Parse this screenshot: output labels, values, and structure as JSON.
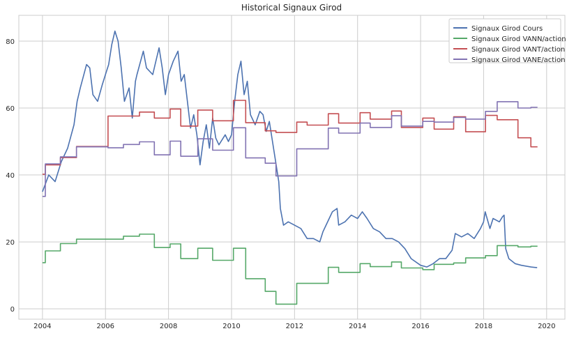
{
  "chart_data": {
    "type": "line",
    "title": "Historical Signaux Girod",
    "xlabel": "",
    "ylabel": "",
    "xlim": [
      2003.25,
      2020.58
    ],
    "ylim": [
      -3.1,
      87.7
    ],
    "xticks": [
      2004,
      2006,
      2008,
      2010,
      2012,
      2014,
      2016,
      2018,
      2020
    ],
    "yticks": [
      0,
      20,
      40,
      60,
      80
    ],
    "grid": true,
    "legend_position": "top-right",
    "series": [
      {
        "name": "Signaux Girod Cours",
        "color": "#4c72b0",
        "step": false,
        "x": [
          2004.0,
          2004.2,
          2004.4,
          2004.6,
          2004.8,
          2005.0,
          2005.1,
          2005.2,
          2005.4,
          2005.5,
          2005.6,
          2005.75,
          2005.9,
          2006.0,
          2006.1,
          2006.2,
          2006.3,
          2006.4,
          2006.5,
          2006.6,
          2006.75,
          2006.85,
          2006.95,
          2007.0,
          2007.2,
          2007.3,
          2007.5,
          2007.6,
          2007.7,
          2007.8,
          2007.9,
          2008.0,
          2008.15,
          2008.3,
          2008.4,
          2008.5,
          2008.6,
          2008.7,
          2008.8,
          2008.9,
          2009.0,
          2009.1,
          2009.2,
          2009.3,
          2009.4,
          2009.5,
          2009.6,
          2009.8,
          2009.9,
          2010.0,
          2010.1,
          2010.2,
          2010.3,
          2010.4,
          2010.5,
          2010.6,
          2010.75,
          2010.9,
          2011.0,
          2011.1,
          2011.2,
          2011.3,
          2011.4,
          2011.5,
          2011.55,
          2011.65,
          2011.8,
          2012.0,
          2012.2,
          2012.4,
          2012.6,
          2012.8,
          2012.9,
          2013.0,
          2013.2,
          2013.35,
          2013.4,
          2013.6,
          2013.8,
          2014.0,
          2014.15,
          2014.3,
          2014.5,
          2014.7,
          2014.9,
          2015.1,
          2015.3,
          2015.5,
          2015.7,
          2016.0,
          2016.2,
          2016.4,
          2016.6,
          2016.8,
          2017.0,
          2017.1,
          2017.3,
          2017.5,
          2017.7,
          2017.9,
          2018.0,
          2018.05,
          2018.2,
          2018.3,
          2018.5,
          2018.6,
          2018.65,
          2018.7,
          2018.8,
          2019.0,
          2019.2,
          2019.5,
          2019.7
        ],
        "y": [
          35,
          40,
          38,
          44,
          48,
          55,
          62,
          66,
          73,
          72,
          64,
          62,
          67,
          70,
          73,
          79,
          83,
          80,
          72,
          62,
          66,
          57,
          68,
          70,
          77,
          72,
          70,
          74,
          78,
          72,
          64,
          70,
          74,
          77,
          68,
          70,
          62,
          54,
          58,
          52,
          43,
          50,
          55,
          48,
          57,
          51,
          49,
          52,
          50,
          52,
          62,
          70,
          74,
          64,
          68,
          58,
          55,
          59,
          58,
          53,
          56,
          50,
          44,
          38,
          30,
          25,
          26,
          25,
          24,
          21,
          21,
          20,
          23,
          25,
          29,
          30,
          25,
          26,
          28,
          27,
          29,
          27,
          24,
          23,
          21,
          21,
          20,
          18,
          15,
          13,
          12.5,
          13.5,
          15,
          15,
          17.5,
          22.5,
          21.5,
          22.5,
          21,
          24,
          26,
          29,
          24,
          27,
          26,
          27.5,
          28,
          18,
          15,
          13.5,
          13,
          12.5,
          12.3
        ]
      },
      {
        "name": "Signaux Girod VANN/action",
        "color": "#55a868",
        "step": true,
        "x": [
          2004.0,
          2004.09,
          2004.57,
          2005.08,
          2006.57,
          2007.08,
          2007.55,
          2008.05,
          2008.39,
          2008.93,
          2009.4,
          2010.06,
          2010.45,
          2011.07,
          2011.41,
          2012.07,
          2013.07,
          2013.4,
          2014.08,
          2014.4,
          2015.08,
          2015.39,
          2016.07,
          2016.43,
          2017.05,
          2017.43,
          2018.06,
          2018.43,
          2019.09,
          2019.5,
          2019.71
        ],
        "y": [
          13.8,
          17.3,
          19.5,
          20.8,
          21.7,
          22.3,
          18.3,
          19.4,
          15.0,
          18.1,
          14.5,
          18.1,
          9.0,
          5.2,
          1.4,
          7.6,
          12.4,
          10.9,
          13.5,
          12.6,
          14.0,
          12.2,
          11.7,
          13.3,
          13.7,
          15.2,
          15.9,
          18.9,
          18.5,
          18.7,
          18.7
        ]
      },
      {
        "name": "Signaux Girod VANT/action",
        "color": "#c44e52",
        "step": true,
        "x": [
          2004.0,
          2004.09,
          2004.57,
          2005.08,
          2006.08,
          2007.08,
          2007.55,
          2008.05,
          2008.39,
          2008.93,
          2009.4,
          2010.06,
          2010.45,
          2011.07,
          2011.41,
          2012.07,
          2012.4,
          2013.07,
          2013.4,
          2014.08,
          2014.4,
          2015.08,
          2015.39,
          2016.07,
          2016.43,
          2017.05,
          2017.43,
          2018.06,
          2018.43,
          2019.09,
          2019.5,
          2019.71
        ],
        "y": [
          40.2,
          43.0,
          45.2,
          48.5,
          57.6,
          58.8,
          57.0,
          59.7,
          54.6,
          59.4,
          56.2,
          62.3,
          55.6,
          53.2,
          52.7,
          55.8,
          54.9,
          58.3,
          55.5,
          58.6,
          56.7,
          59.1,
          54.2,
          57.0,
          53.7,
          57.4,
          52.9,
          57.8,
          56.5,
          51.1,
          48.4,
          48.4
        ]
      },
      {
        "name": "Signaux Girod VANE/action",
        "color": "#8172b2",
        "step": true,
        "x": [
          2004.0,
          2004.09,
          2004.57,
          2005.08,
          2006.08,
          2006.57,
          2007.08,
          2007.55,
          2008.05,
          2008.39,
          2008.93,
          2009.4,
          2010.06,
          2010.45,
          2011.07,
          2011.41,
          2012.07,
          2013.07,
          2013.4,
          2014.08,
          2014.4,
          2015.08,
          2015.39,
          2016.07,
          2016.43,
          2017.05,
          2017.43,
          2018.06,
          2018.43,
          2019.09,
          2019.5,
          2019.71
        ],
        "y": [
          33.6,
          43.3,
          45.4,
          48.4,
          48.1,
          49.1,
          49.9,
          46.0,
          50.1,
          45.6,
          50.8,
          47.4,
          54.1,
          45.1,
          43.5,
          39.7,
          47.8,
          54.0,
          52.5,
          55.5,
          54.2,
          57.7,
          54.6,
          56.0,
          55.8,
          57.2,
          56.7,
          59.0,
          61.9,
          60.0,
          60.2,
          60.2
        ]
      }
    ]
  }
}
